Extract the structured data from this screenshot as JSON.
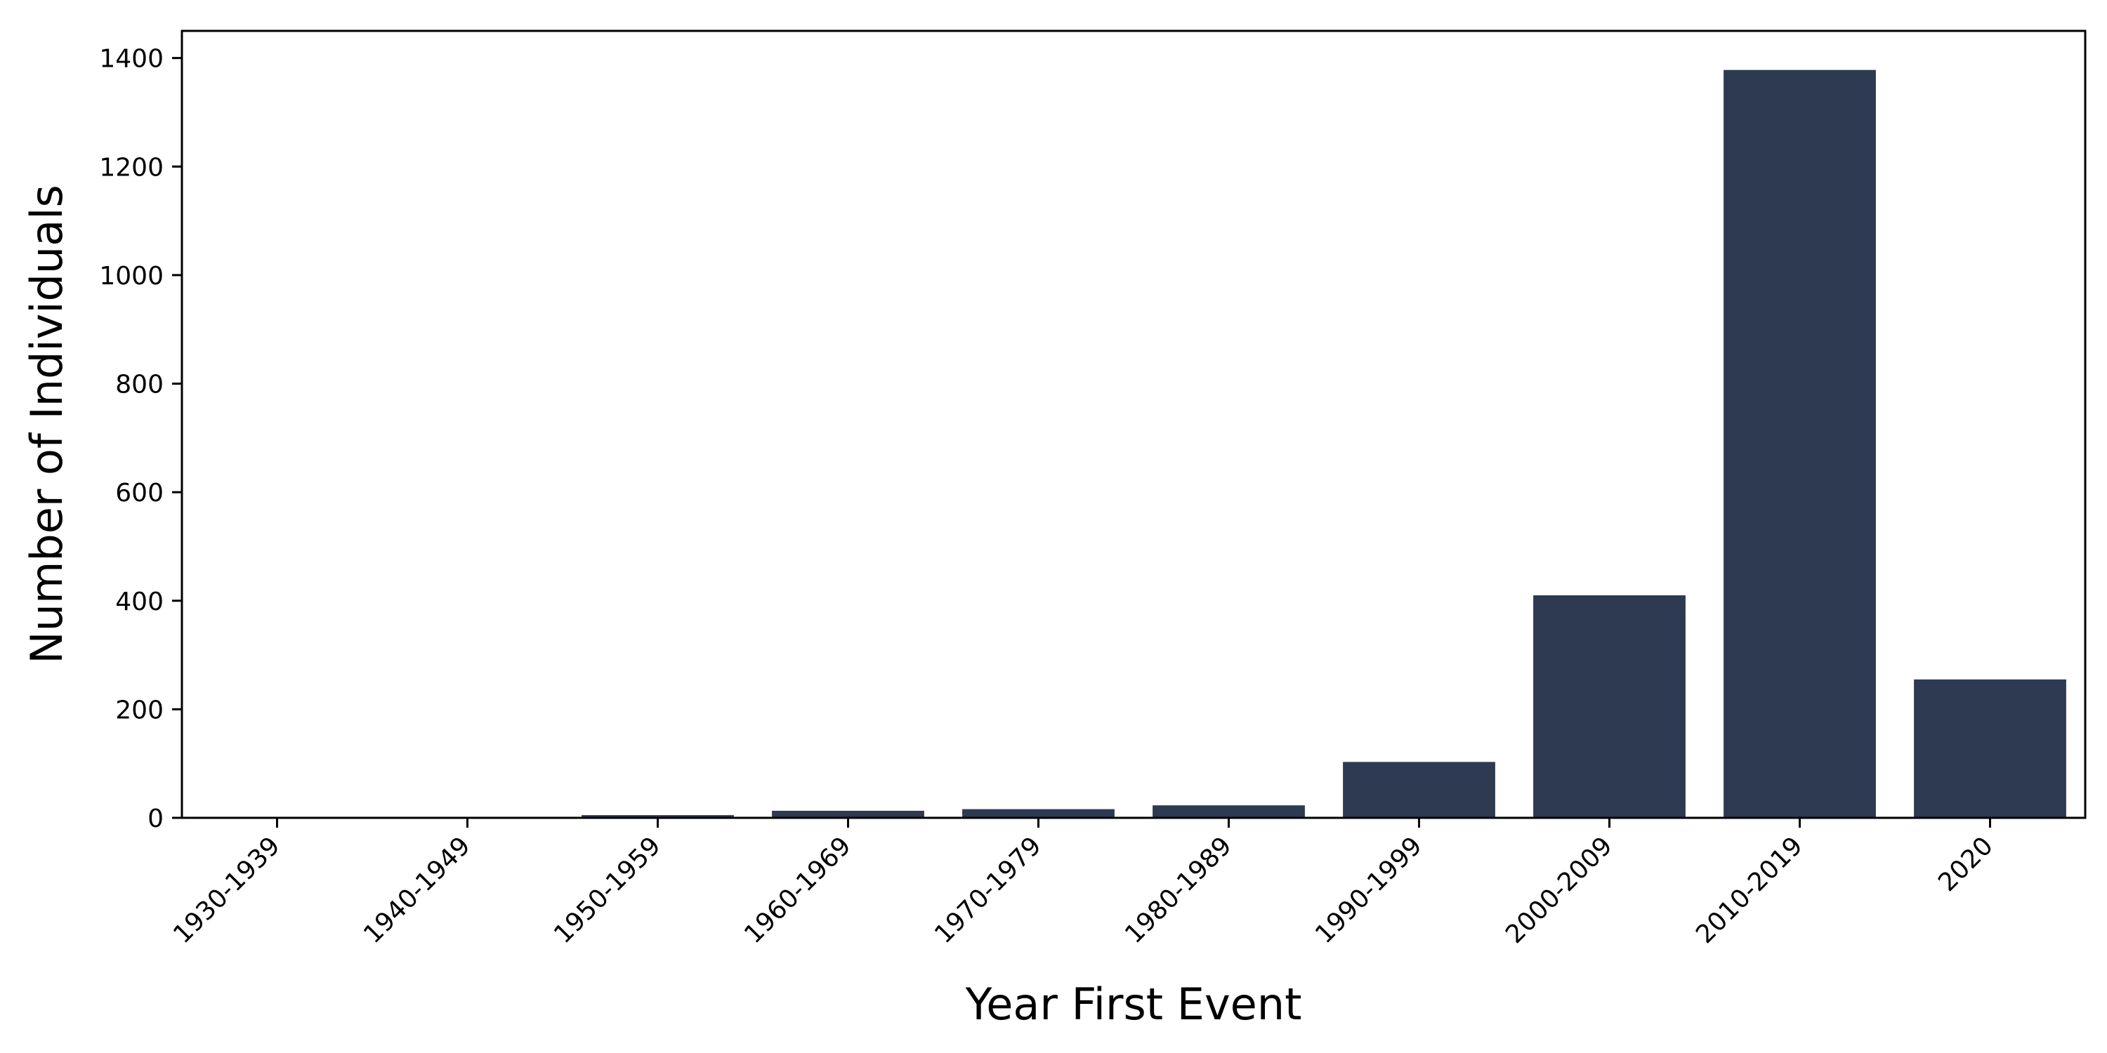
{
  "chart_data": {
    "type": "bar",
    "title": "",
    "xlabel": "Year First Event",
    "ylabel": "Number of Individuals",
    "categories": [
      "1930-1939",
      "1940-1949",
      "1950-1959",
      "1960-1969",
      "1970-1979",
      "1980-1989",
      "1990-1999",
      "2000-2009",
      "2010-2019",
      "2020"
    ],
    "values": [
      1,
      1,
      5,
      13,
      16,
      23,
      103,
      410,
      1378,
      255
    ],
    "ylim": [
      0,
      1450
    ],
    "yticks": [
      0,
      200,
      400,
      600,
      800,
      1000,
      1200,
      1400
    ],
    "bar_color": "#2d3a52",
    "grid": false,
    "legend": "none"
  }
}
